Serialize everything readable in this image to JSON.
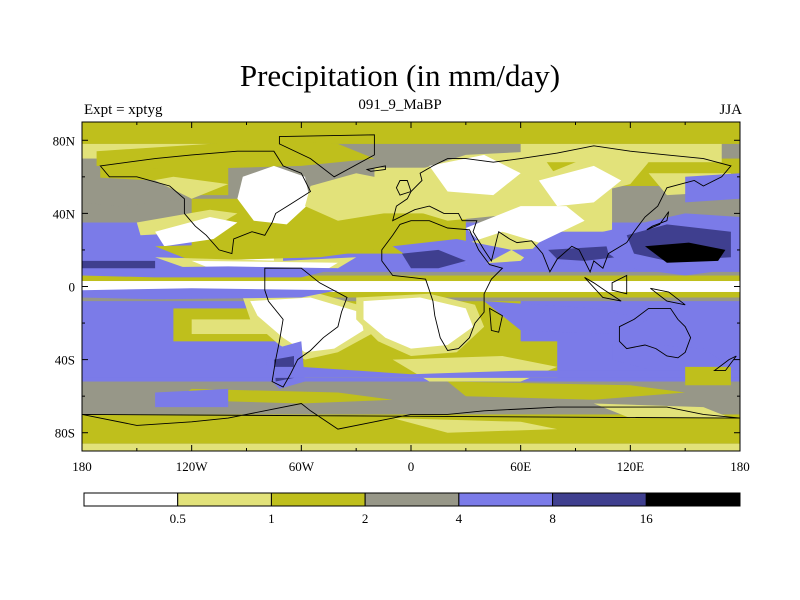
{
  "chart_data": {
    "type": "heatmap",
    "title": "Precipitation (in mm/day)",
    "subtitle_left": "Expt = xptyg",
    "subtitle_center": "091_9_MaBP",
    "subtitle_right": "JJA",
    "x_ticks": [
      "180",
      "120W",
      "60W",
      "0",
      "60E",
      "120E",
      "180"
    ],
    "x_tick_values": [
      -180,
      -120,
      -60,
      0,
      60,
      120,
      180
    ],
    "y_ticks": [
      "80N",
      "40N",
      "0",
      "40S",
      "80S"
    ],
    "y_tick_values": [
      80,
      40,
      0,
      -40,
      -80
    ],
    "xlim": [
      -180,
      180
    ],
    "ylim": [
      -90,
      90
    ],
    "colorbar": {
      "levels": [
        "0.5",
        "1",
        "2",
        "4",
        "8",
        "16"
      ],
      "colors": [
        "#ffffff",
        "#e2e27a",
        "#bfbf1c",
        "#979788",
        "#7b7be8",
        "#3f3f8f",
        "#000000"
      ]
    }
  }
}
